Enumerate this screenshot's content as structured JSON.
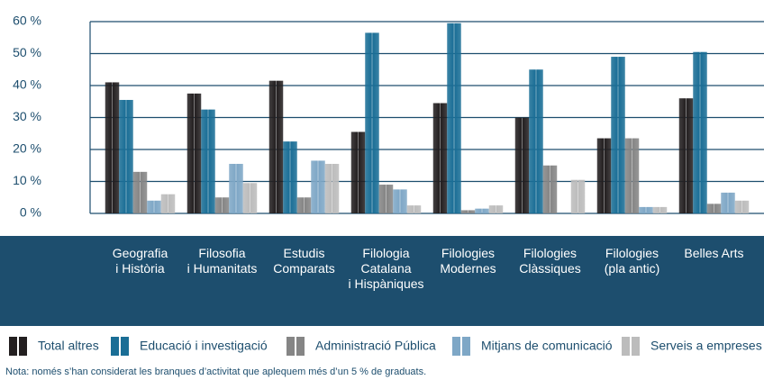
{
  "chart_data": {
    "type": "bar",
    "categories": [
      "Geografia\ni Història",
      "Filosofia\ni Humanitats",
      "Estudis\nComparats",
      "Filologia\nCatalana\ni Hispàniques",
      "Filologies\nModernes",
      "Filologies\nClàssiques",
      "Filologies\n(pla antic)",
      "Belles Arts"
    ],
    "series": [
      {
        "name": "Total altres",
        "color": "#231f20",
        "values": [
          41,
          37.5,
          41.5,
          25.5,
          34.5,
          30,
          23.5,
          36
        ]
      },
      {
        "name": "Educació i investigació",
        "color": "#1a6e96",
        "values": [
          35.5,
          32.5,
          22.5,
          56.5,
          59.5,
          45,
          49,
          50.5
        ]
      },
      {
        "name": "Administració Pública",
        "color": "#858585",
        "values": [
          13,
          5,
          5,
          9,
          1,
          15,
          23.5,
          3
        ]
      },
      {
        "name": "Mitjans de comunicació",
        "color": "#7ea7c6",
        "values": [
          4,
          15.5,
          16.5,
          7.5,
          1.5,
          0,
          2,
          6.5
        ]
      },
      {
        "name": "Serveis a empreses",
        "color": "#bcbcbc",
        "values": [
          6,
          9.5,
          15.5,
          2.5,
          2.5,
          10.5,
          2,
          4
        ]
      }
    ],
    "ylim": [
      0,
      60
    ],
    "yticks": [
      {
        "value": 0,
        "label": "0 %"
      },
      {
        "value": 10,
        "label": "10 %"
      },
      {
        "value": 20,
        "label": "20 %"
      },
      {
        "value": 30,
        "label": "30 %"
      },
      {
        "value": 40,
        "label": "40 %"
      },
      {
        "value": 50,
        "label": "50 %"
      },
      {
        "value": 60,
        "label": "60 %"
      }
    ],
    "grid": true,
    "legend": "bottom",
    "note": "Nota: només s’han considerat les branques d’activitat que aplequem més d’un 5 % de graduats."
  }
}
